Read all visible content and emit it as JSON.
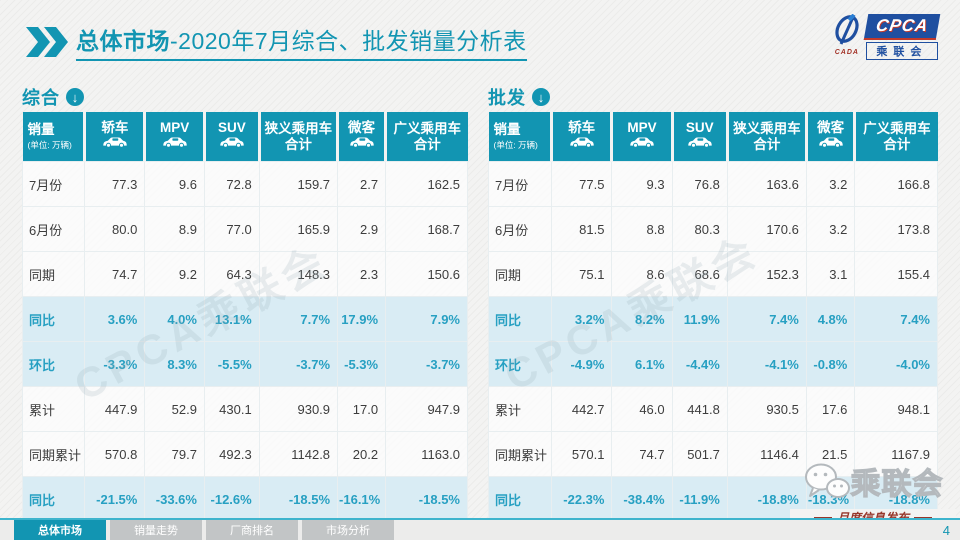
{
  "title": {
    "bold": "总体市场",
    "rest": "-2020年7月综合、批发销量分析表"
  },
  "logo": {
    "cpca": "CPCA",
    "cada": "CADA",
    "cn": "乘联会"
  },
  "unit_note": "(单位: 万辆)",
  "columns": [
    {
      "label": "销量",
      "note": "(单位: 万辆)"
    },
    {
      "label": "轿车",
      "icon": "car-icon"
    },
    {
      "label": "MPV",
      "icon": "car-icon"
    },
    {
      "label": "SUV",
      "icon": "car-icon"
    },
    {
      "label": "狭义乘用车",
      "line2": "合计"
    },
    {
      "label": "微客",
      "icon": "car-icon"
    },
    {
      "label": "广义乘用车",
      "line2": "合计"
    }
  ],
  "tables": [
    {
      "name": "综合",
      "rows": [
        {
          "label": "7月份",
          "type": "plain",
          "values": [
            "77.3",
            "9.6",
            "72.8",
            "159.7",
            "2.7",
            "162.5"
          ]
        },
        {
          "label": "6月份",
          "type": "plain",
          "values": [
            "80.0",
            "8.9",
            "77.0",
            "165.9",
            "2.9",
            "168.7"
          ]
        },
        {
          "label": "同期",
          "type": "plain",
          "values": [
            "74.7",
            "9.2",
            "64.3",
            "148.3",
            "2.3",
            "150.6"
          ]
        },
        {
          "label": "同比",
          "type": "pct",
          "values": [
            "3.6%",
            "4.0%",
            "13.1%",
            "7.7%",
            "17.9%",
            "7.9%"
          ]
        },
        {
          "label": "环比",
          "type": "pct",
          "values": [
            "-3.3%",
            "8.3%",
            "-5.5%",
            "-3.7%",
            "-5.3%",
            "-3.7%"
          ]
        },
        {
          "label": "累计",
          "type": "plain",
          "values": [
            "447.9",
            "52.9",
            "430.1",
            "930.9",
            "17.0",
            "947.9"
          ]
        },
        {
          "label": "同期累计",
          "type": "plain",
          "values": [
            "570.8",
            "79.7",
            "492.3",
            "1142.8",
            "20.2",
            "1163.0"
          ]
        },
        {
          "label": "同比",
          "type": "pct",
          "values": [
            "-21.5%",
            "-33.6%",
            "-12.6%",
            "-18.5%",
            "-16.1%",
            "-18.5%"
          ]
        }
      ]
    },
    {
      "name": "批发",
      "rows": [
        {
          "label": "7月份",
          "type": "plain",
          "values": [
            "77.5",
            "9.3",
            "76.8",
            "163.6",
            "3.2",
            "166.8"
          ]
        },
        {
          "label": "6月份",
          "type": "plain",
          "values": [
            "81.5",
            "8.8",
            "80.3",
            "170.6",
            "3.2",
            "173.8"
          ]
        },
        {
          "label": "同期",
          "type": "plain",
          "values": [
            "75.1",
            "8.6",
            "68.6",
            "152.3",
            "3.1",
            "155.4"
          ]
        },
        {
          "label": "同比",
          "type": "pct",
          "values": [
            "3.2%",
            "8.2%",
            "11.9%",
            "7.4%",
            "4.8%",
            "7.4%"
          ]
        },
        {
          "label": "环比",
          "type": "pct",
          "values": [
            "-4.9%",
            "6.1%",
            "-4.4%",
            "-4.1%",
            "-0.8%",
            "-4.0%"
          ]
        },
        {
          "label": "累计",
          "type": "plain",
          "values": [
            "442.7",
            "46.0",
            "441.8",
            "930.5",
            "17.6",
            "948.1"
          ]
        },
        {
          "label": "同期累计",
          "type": "plain",
          "values": [
            "570.1",
            "74.7",
            "501.7",
            "1146.4",
            "21.5",
            "1167.9"
          ]
        },
        {
          "label": "同比",
          "type": "pct",
          "values": [
            "-22.3%",
            "-38.4%",
            "-11.9%",
            "-18.8%",
            "-18.3%",
            "-18.8%"
          ]
        }
      ]
    }
  ],
  "watermark": "CPCA乘联会",
  "stamp": {
    "account": "乘联会",
    "caption": "月度信息发布"
  },
  "footer": {
    "tabs": [
      "总体市场",
      "销量走势",
      "厂商排名",
      "市场分析"
    ],
    "active_tab": "总体市场",
    "page": "4"
  },
  "colors": {
    "accent_teal": "#1295b2",
    "pct_row_bg": "#d9ecf4",
    "logo_blue": "#1f4fa0",
    "stamp_red": "#96372b"
  }
}
